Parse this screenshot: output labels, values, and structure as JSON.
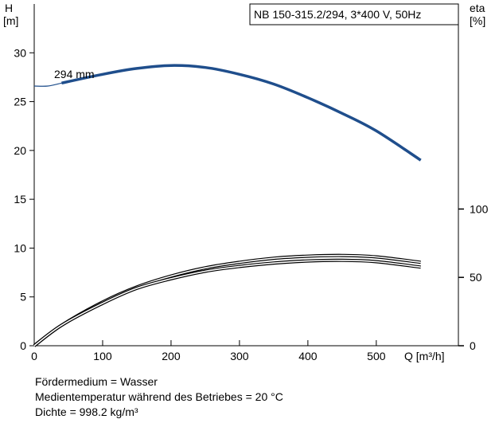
{
  "chart_data": {
    "type": "line",
    "title": "NB 150-315.2/294, 3*400 V, 50Hz",
    "xlabel": "Q [m³/h]",
    "ylabel_left_symbol": "H",
    "ylabel_left_unit": "[m]",
    "ylabel_right_symbol": "eta",
    "ylabel_right_unit": "[%]",
    "xlim": [
      0,
      620
    ],
    "ylim_left": [
      0,
      35
    ],
    "ylim_right": [
      0,
      250
    ],
    "x_ticks": [
      "0",
      "100",
      "200",
      "300",
      "400",
      "500"
    ],
    "y_ticks_left": [
      "0",
      "5",
      "10",
      "15",
      "20",
      "25",
      "30"
    ],
    "y_ticks_right": [
      "0",
      "50",
      "100"
    ],
    "grid": false,
    "curve_label": "294 mm",
    "series": [
      {
        "name": "294 mm",
        "axis": "left",
        "color": "#1f4e8c",
        "x": [
          40,
          100,
          150,
          200,
          250,
          300,
          350,
          400,
          450,
          500,
          565
        ],
        "y": [
          26.9,
          27.8,
          28.4,
          28.7,
          28.5,
          27.8,
          26.8,
          25.4,
          23.8,
          22.0,
          19.0
        ],
        "extension": {
          "x": [
            0,
            20,
            40
          ],
          "y": [
            26.6,
            26.6,
            26.9
          ]
        }
      },
      {
        "axis": "right",
        "color": "#000000",
        "x": [
          0,
          40,
          100,
          150,
          200,
          250,
          300,
          350,
          400,
          450,
          500,
          565
        ],
        "y": [
          0,
          15,
          32,
          43,
          51,
          57,
          61,
          64,
          65.5,
          66,
          65,
          61
        ]
      },
      {
        "axis": "right",
        "color": "#000000",
        "x": [
          0,
          40,
          100,
          150,
          200,
          250,
          300,
          350,
          400,
          450,
          500,
          565
        ],
        "y": [
          0,
          15,
          31,
          42,
          49,
          54.5,
          58,
          60.5,
          62,
          62.5,
          61.5,
          57.5
        ]
      }
    ]
  },
  "notes": {
    "fluid": "Fördermedium = Wasser",
    "temperature": "Medientemperatur während des Betriebes = 20 °C",
    "density": "Dichte = 998.2 kg/m³"
  }
}
